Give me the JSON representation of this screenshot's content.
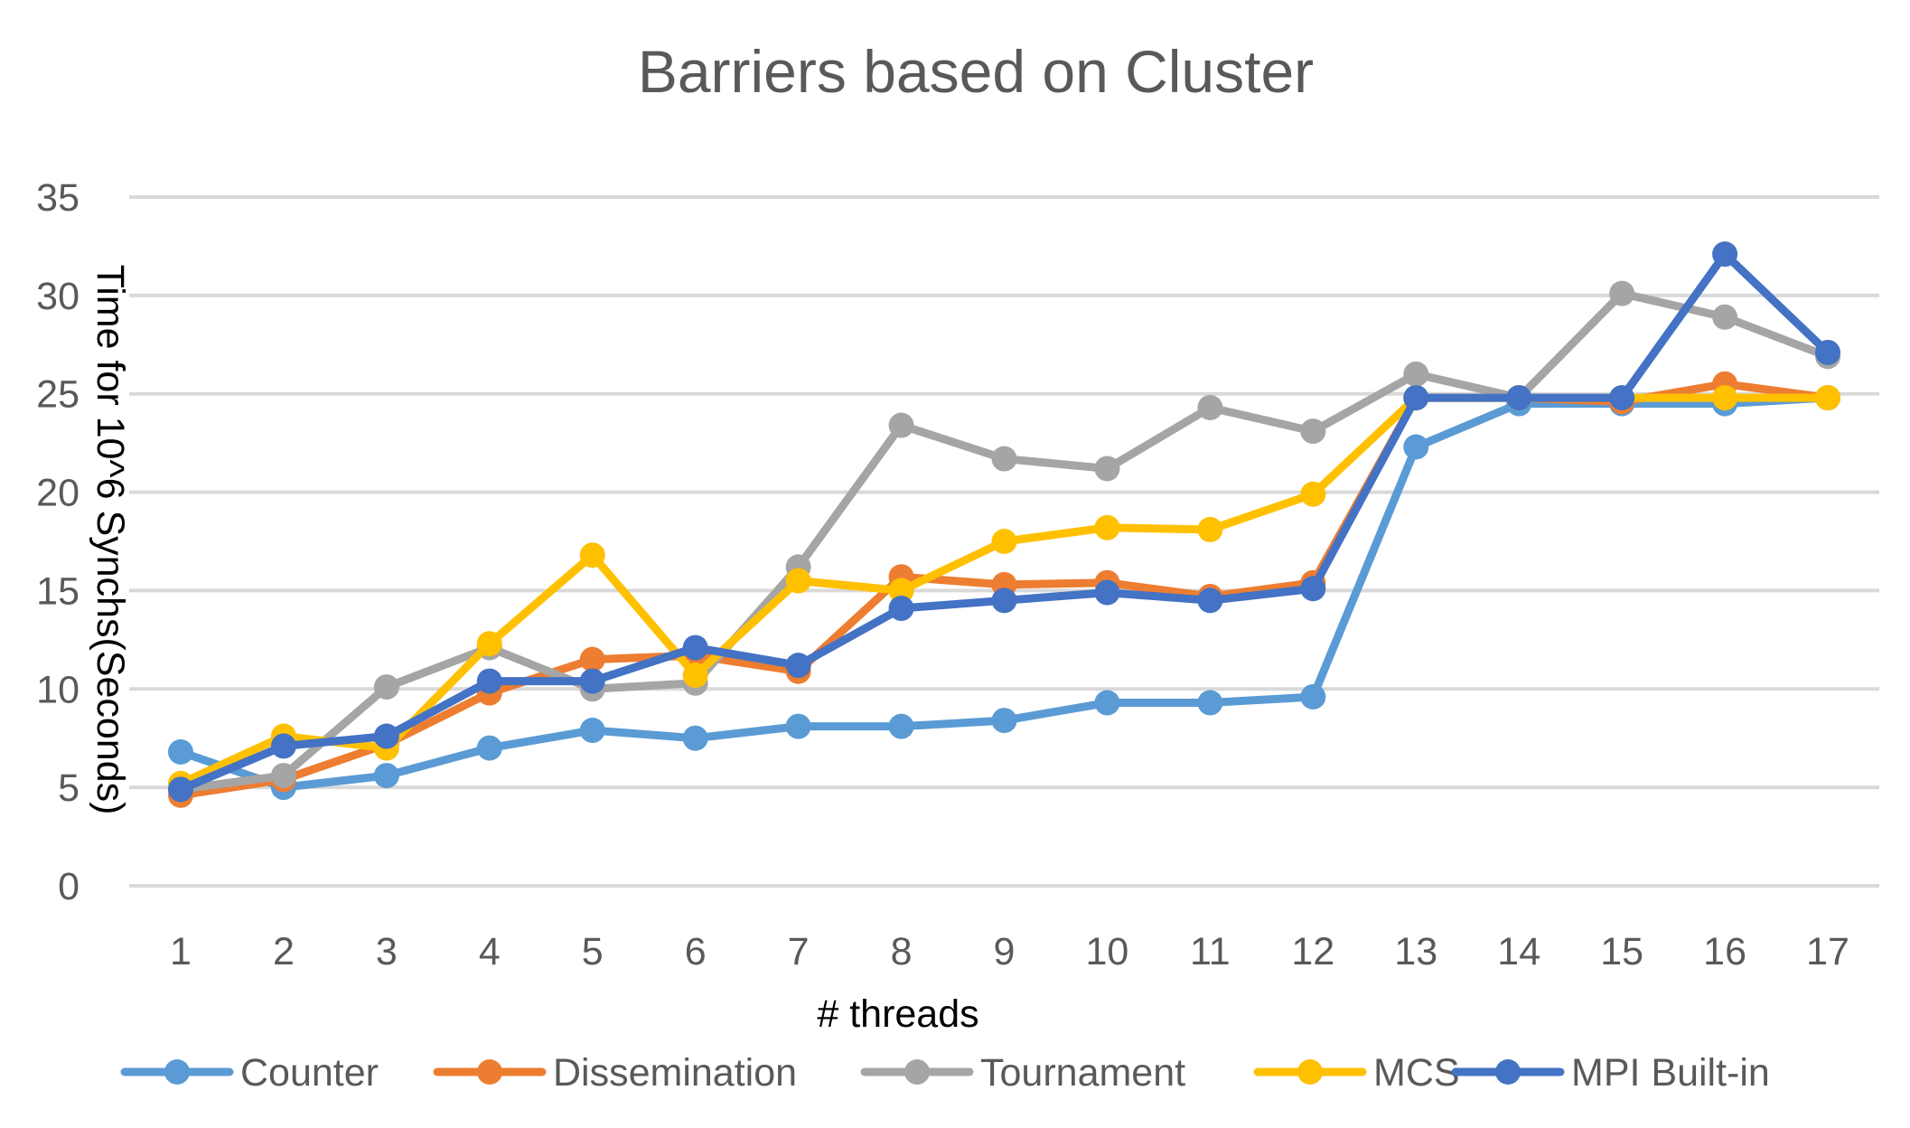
{
  "chart_data": {
    "type": "line",
    "title": "Barriers based on Cluster",
    "xlabel": "# threads",
    "ylabel": "Time for 10^6 Synchs(Seconds)",
    "categories": [
      "1",
      "2",
      "3",
      "4",
      "5",
      "6",
      "7",
      "8",
      "9",
      "10",
      "11",
      "12",
      "13",
      "14",
      "15",
      "16",
      "17"
    ],
    "ylim": [
      0,
      35
    ],
    "yticks": [
      "0",
      "5",
      "10",
      "15",
      "20",
      "25",
      "30",
      "35"
    ],
    "grid": "horizontal",
    "legend_position": "bottom",
    "series": [
      {
        "name": "Counter",
        "color": "#5B9BD5",
        "values": [
          6.8,
          5.0,
          5.6,
          7.0,
          7.9,
          7.5,
          8.1,
          8.1,
          8.4,
          9.3,
          9.3,
          9.6,
          22.3,
          24.5,
          24.5,
          24.5,
          24.8
        ]
      },
      {
        "name": "Dissemination",
        "color": "#ED7D31",
        "values": [
          4.6,
          5.4,
          7.2,
          9.8,
          11.5,
          11.7,
          10.9,
          15.7,
          15.3,
          15.4,
          14.7,
          15.4,
          24.8,
          24.8,
          24.6,
          25.5,
          24.8
        ]
      },
      {
        "name": "Tournament",
        "color": "#A5A5A5",
        "values": [
          4.9,
          5.6,
          10.1,
          12.1,
          10.0,
          10.3,
          16.2,
          23.4,
          21.7,
          21.2,
          24.3,
          23.1,
          26.0,
          24.8,
          30.1,
          28.9,
          26.9
        ]
      },
      {
        "name": "MCS",
        "color": "#FFC000",
        "values": [
          5.2,
          7.6,
          7.0,
          12.3,
          16.8,
          10.7,
          15.5,
          15.0,
          17.5,
          18.2,
          18.1,
          19.9,
          24.8,
          24.8,
          24.8,
          24.8,
          24.8
        ]
      },
      {
        "name": "MPI Built-in",
        "color": "#4472C4",
        "values": [
          4.9,
          7.1,
          7.6,
          10.4,
          10.4,
          12.1,
          11.2,
          14.1,
          14.5,
          14.9,
          14.5,
          15.1,
          24.8,
          24.8,
          24.8,
          32.1,
          27.1
        ]
      }
    ]
  }
}
